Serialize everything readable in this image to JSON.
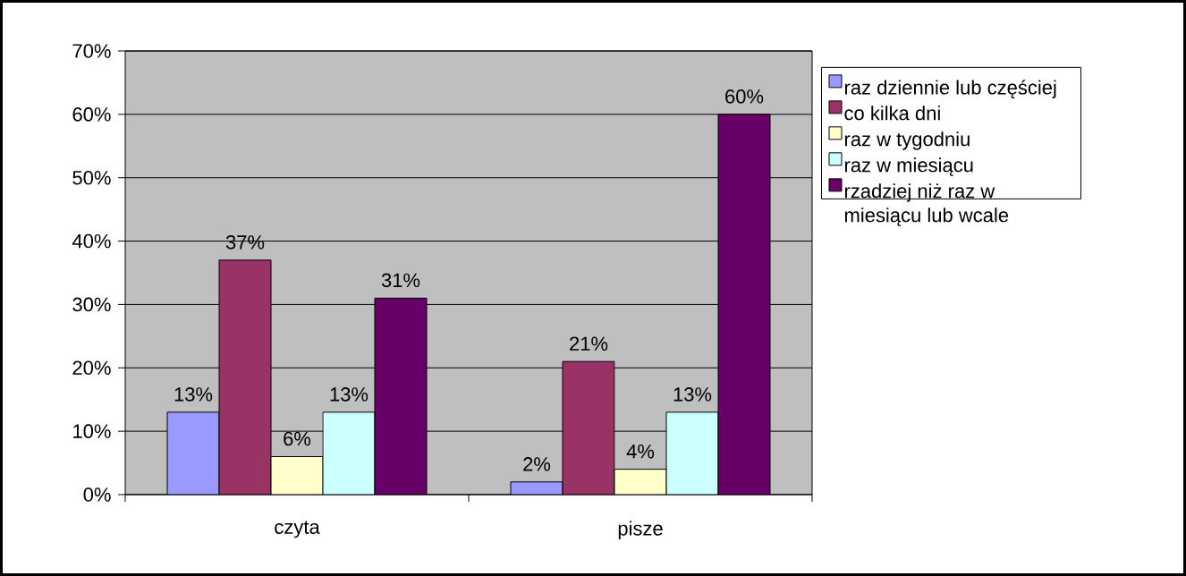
{
  "chart_data": {
    "type": "bar",
    "categories": [
      "czyta",
      "pisze"
    ],
    "series": [
      {
        "name": "raz dziennie lub częściej",
        "color": "#9999ff",
        "values": [
          13,
          2
        ],
        "value_labels": [
          "13%",
          "2%"
        ]
      },
      {
        "name": "co kilka dni",
        "color": "#993366",
        "values": [
          37,
          21
        ],
        "value_labels": [
          "37%",
          "21%"
        ]
      },
      {
        "name": "raz w tygodniu",
        "color": "#ffffcc",
        "values": [
          6,
          4
        ],
        "value_labels": [
          "6%",
          "4%"
        ]
      },
      {
        "name": "raz w miesiącu",
        "color": "#ccffff",
        "values": [
          13,
          13
        ],
        "value_labels": [
          "13%",
          "13%"
        ]
      },
      {
        "name": "rzadziej niż raz w miesiącu lub wcale",
        "color": "#660066",
        "values": [
          31,
          60
        ],
        "value_labels": [
          "31%",
          "60%"
        ]
      }
    ],
    "ylim": [
      0,
      70
    ],
    "yticks": [
      {
        "value": 0,
        "label": "0%"
      },
      {
        "value": 10,
        "label": "10%"
      },
      {
        "value": 20,
        "label": "20%"
      },
      {
        "value": 30,
        "label": "30%"
      },
      {
        "value": 40,
        "label": "40%"
      },
      {
        "value": 50,
        "label": "50%"
      },
      {
        "value": 60,
        "label": "60%"
      },
      {
        "value": 70,
        "label": "70%"
      }
    ],
    "grid": "y",
    "legend": "right"
  }
}
